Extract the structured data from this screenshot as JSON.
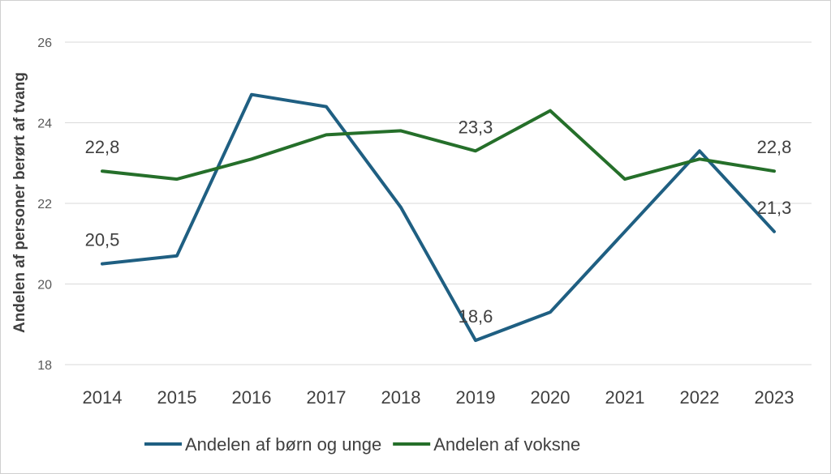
{
  "chart_data": {
    "type": "line",
    "title": "",
    "xlabel": "",
    "ylabel": "Andelen af personer  berørt af tvang",
    "ylim": [
      18,
      26
    ],
    "yticks": [
      18,
      20,
      22,
      24,
      26
    ],
    "grid": true,
    "legend_position": "bottom",
    "categories": [
      "2014",
      "2015",
      "2016",
      "2017",
      "2018",
      "2019",
      "2020",
      "2021",
      "2022",
      "2023"
    ],
    "series": [
      {
        "name": "Andelen af børn og unge",
        "color": "#1f5f82",
        "values": [
          20.5,
          20.7,
          24.7,
          24.4,
          21.9,
          18.6,
          19.3,
          21.3,
          23.3,
          21.3
        ],
        "labels": [
          {
            "index": 0,
            "text": "20,5"
          },
          {
            "index": 5,
            "text": "18,6"
          },
          {
            "index": 9,
            "text": "21,3"
          }
        ]
      },
      {
        "name": "Andelen af voksne",
        "color": "#256f2a",
        "values": [
          22.8,
          22.6,
          23.1,
          23.7,
          23.8,
          23.3,
          24.3,
          22.6,
          23.1,
          22.8
        ],
        "labels": [
          {
            "index": 0,
            "text": "22,8"
          },
          {
            "index": 5,
            "text": "23,3"
          },
          {
            "index": 9,
            "text": "22,8"
          }
        ]
      }
    ]
  }
}
